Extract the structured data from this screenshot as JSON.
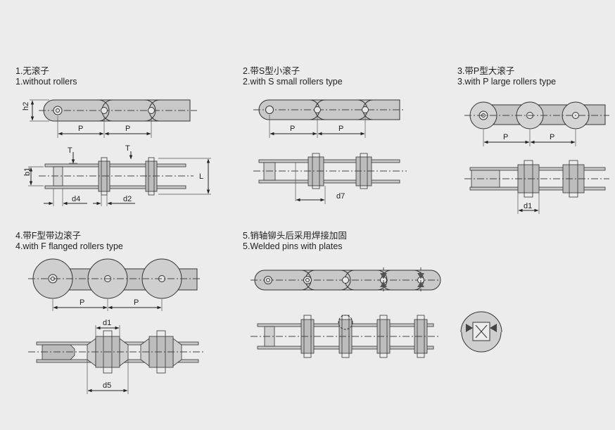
{
  "sections": [
    {
      "title_cn": "1.无滚子",
      "title_en": "1.without rollers"
    },
    {
      "title_cn": "2.带S型小滚子",
      "title_en": "2.with S small rollers type"
    },
    {
      "title_cn": "3.带P型大滚子",
      "title_en": "3.with P large rollers type"
    },
    {
      "title_cn": "4.带F型带边滚子",
      "title_en": "4.with F flanged rollers type"
    },
    {
      "title_cn": "5.销轴铆头后采用焊接加固",
      "title_en": "5.Welded pins with plates"
    }
  ],
  "dims": {
    "p": "P",
    "h2": "h2",
    "b1": "b1",
    "t": "T",
    "l": "L",
    "d4": "d4",
    "d2": "d2",
    "d7": "d7",
    "d1": "d1",
    "d5": "d5"
  }
}
